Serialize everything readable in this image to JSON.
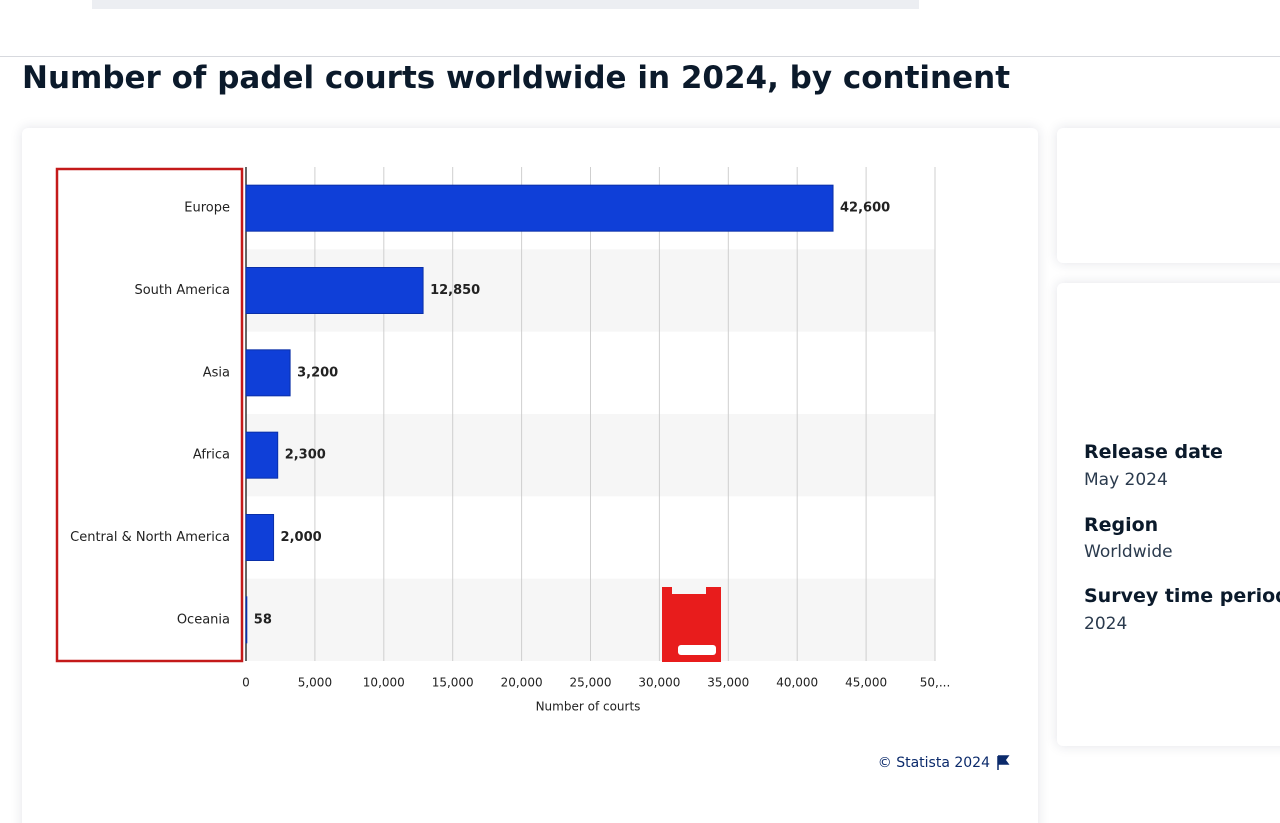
{
  "header": {
    "title": "Number of padel courts worldwide in 2024, by continent"
  },
  "chart_data": {
    "type": "bar",
    "orientation": "horizontal",
    "categories": [
      "Europe",
      "South America",
      "Asia",
      "Africa",
      "Central & North America",
      "Oceania"
    ],
    "values": [
      42600,
      12850,
      3200,
      2300,
      2000,
      58
    ],
    "value_labels": [
      "42,600",
      "12,850",
      "3,200",
      "2,300",
      "2,000",
      "58"
    ],
    "color": "#0f3fd8",
    "x_label": "Number of courts",
    "xlim": [
      0,
      50000
    ],
    "xticks": [
      0,
      {
        "value": 5000,
        "label": "5,000"
      },
      {
        "value": 10000,
        "label": "10,000"
      },
      {
        "value": 15000,
        "label": "15,000"
      },
      {
        "value": 20000,
        "label": "20,000"
      },
      {
        "value": 25000,
        "label": "25,000"
      },
      {
        "value": 30000,
        "label": "30,000"
      },
      {
        "value": 35000,
        "label": "35,000"
      },
      {
        "value": 40000,
        "label": "40,000"
      },
      {
        "value": 45000,
        "label": "45,000"
      },
      {
        "value": 50000,
        "label": "50,..."
      }
    ],
    "grid": true,
    "credit": "© Statista 2024"
  },
  "sidebar": [
    {
      "heading": "Release date",
      "value": "May 2024"
    },
    {
      "heading": "Region",
      "value": "Worldwide"
    },
    {
      "heading": "Survey time period",
      "value": "2024"
    }
  ]
}
